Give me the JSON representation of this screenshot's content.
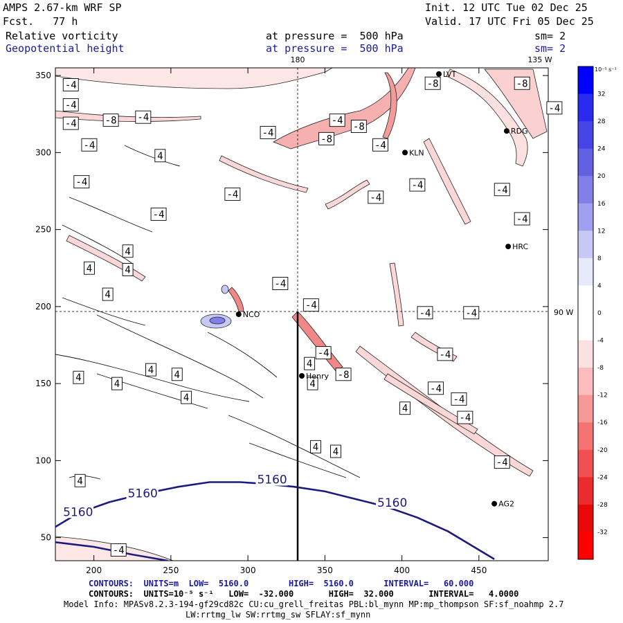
{
  "header": {
    "model": "AMPS 2.67-km WRF SP",
    "fcst": "Fcst.   77 h",
    "init": "Init. 12 UTC Tue 02 Dec 25",
    "valid": "Valid. 17 UTC Fri 05 Dec 25",
    "field1": "Relative vorticity",
    "field2": "Geopotential height",
    "press1": "at pressure =  500 hPa",
    "press2": "at pressure =  500 hPa",
    "sm1": "sm= 2",
    "sm2": "sm= 2"
  },
  "map_labels": {
    "lon_180": "180",
    "lon_135w": "135 W",
    "lat_90w": "90 W"
  },
  "stations": [
    {
      "name": "LVT",
      "x": 424,
      "y": 351
    },
    {
      "name": "RDG",
      "x": 468,
      "y": 314
    },
    {
      "name": "KLN",
      "x": 402,
      "y": 300
    },
    {
      "name": "HRC",
      "x": 469,
      "y": 239
    },
    {
      "name": "NCO",
      "x": 294,
      "y": 195
    },
    {
      "name": "Henry",
      "x": 335,
      "y": 155
    },
    {
      "name": "AG2",
      "x": 460,
      "y": 72
    }
  ],
  "colorbar": {
    "unit_label": "10⁻⁵ s⁻¹",
    "ticks": [
      "32",
      "28",
      "24",
      "20",
      "16",
      "12",
      "8",
      "4",
      "0",
      "-4",
      "-8",
      "-12",
      "-16",
      "-20",
      "-24",
      "-28",
      "-32"
    ],
    "colors": [
      "#0000ff",
      "#2a2af0",
      "#4545e6",
      "#6060e0",
      "#8080e8",
      "#a0a0f0",
      "#c8c8f6",
      "#e8e8fb",
      "#ffffff",
      "#ffffff",
      "#fde0e0",
      "#fbbcbc",
      "#f79898",
      "#f47474",
      "#f05050",
      "#ec2c2c",
      "#e80808",
      "#ff0000"
    ]
  },
  "chart_data": {
    "type": "contour",
    "x_axis": {
      "range": [
        175,
        495
      ],
      "ticks": [
        200,
        250,
        300,
        350,
        400,
        450
      ]
    },
    "y_axis": {
      "range": [
        35,
        355
      ],
      "ticks": [
        50,
        100,
        150,
        200,
        250,
        300,
        350
      ]
    },
    "height_contours": [
      {
        "value": 5160,
        "label": "5160",
        "points": [
          [
            175,
            57
          ],
          [
            190,
            66
          ],
          [
            210,
            73
          ],
          [
            230,
            78
          ],
          [
            255,
            83
          ],
          [
            275,
            86
          ],
          [
            295,
            86
          ],
          [
            310,
            85
          ],
          [
            330,
            83
          ],
          [
            350,
            80
          ],
          [
            370,
            75
          ],
          [
            390,
            70
          ],
          [
            410,
            63
          ],
          [
            430,
            54
          ],
          [
            445,
            45
          ],
          [
            460,
            36
          ]
        ]
      },
      {
        "value": 5160,
        "label": "",
        "points": [
          [
            175,
            47
          ],
          [
            200,
            44
          ],
          [
            225,
            39
          ],
          [
            248,
            35
          ]
        ]
      }
    ],
    "height_labels": [
      {
        "text": "5160",
        "x": 180,
        "y": 65
      },
      {
        "text": "5160",
        "x": 222,
        "y": 77
      },
      {
        "text": "5160",
        "x": 306,
        "y": 86
      },
      {
        "text": "5160",
        "x": 384,
        "y": 71
      }
    ],
    "vorticity_labels": [
      {
        "text": "-4",
        "x": 185,
        "y": 344
      },
      {
        "text": "-4",
        "x": 185,
        "y": 331
      },
      {
        "text": "-4",
        "x": 185,
        "y": 319
      },
      {
        "text": "-8",
        "x": 211,
        "y": 321
      },
      {
        "text": "-4",
        "x": 232,
        "y": 323
      },
      {
        "text": "-4",
        "x": 197,
        "y": 305
      },
      {
        "text": "4",
        "x": 243,
        "y": 298
      },
      {
        "text": "-4",
        "x": 290,
        "y": 273
      },
      {
        "text": "-4",
        "x": 192,
        "y": 281
      },
      {
        "text": "-4",
        "x": 242,
        "y": 260
      },
      {
        "text": "4",
        "x": 222,
        "y": 236
      },
      {
        "text": "4",
        "x": 197,
        "y": 225
      },
      {
        "text": "4",
        "x": 222,
        "y": 224
      },
      {
        "text": "4",
        "x": 209,
        "y": 208
      },
      {
        "text": "-4",
        "x": 313,
        "y": 313
      },
      {
        "text": "-4",
        "x": 358,
        "y": 321
      },
      {
        "text": "-8",
        "x": 372,
        "y": 317
      },
      {
        "text": "-8",
        "x": 351,
        "y": 309
      },
      {
        "text": "-4",
        "x": 386,
        "y": 305
      },
      {
        "text": "-8",
        "x": 420,
        "y": 345
      },
      {
        "text": "-8",
        "x": 478,
        "y": 345
      },
      {
        "text": "-4",
        "x": 499,
        "y": 329
      },
      {
        "text": "-4",
        "x": 410,
        "y": 279
      },
      {
        "text": "-4",
        "x": 383,
        "y": 271
      },
      {
        "text": "-4",
        "x": 465,
        "y": 276
      },
      {
        "text": "-4",
        "x": 478,
        "y": 257
      },
      {
        "text": "-4",
        "x": 321,
        "y": 215
      },
      {
        "text": "-4",
        "x": 341,
        "y": 201
      },
      {
        "text": "-4",
        "x": 415,
        "y": 196
      },
      {
        "text": "-4",
        "x": 445,
        "y": 196
      },
      {
        "text": "-4",
        "x": 349,
        "y": 170
      },
      {
        "text": "4",
        "x": 340,
        "y": 163
      },
      {
        "text": "-8",
        "x": 362,
        "y": 156
      },
      {
        "text": "4",
        "x": 342,
        "y": 150
      },
      {
        "text": "4",
        "x": 237,
        "y": 159
      },
      {
        "text": "4",
        "x": 254,
        "y": 156
      },
      {
        "text": "4",
        "x": 190,
        "y": 154
      },
      {
        "text": "4",
        "x": 215,
        "y": 150
      },
      {
        "text": "4",
        "x": 260,
        "y": 141
      },
      {
        "text": "-4",
        "x": 428,
        "y": 169
      },
      {
        "text": "-4",
        "x": 422,
        "y": 147
      },
      {
        "text": "-4",
        "x": 437,
        "y": 140
      },
      {
        "text": "4",
        "x": 402,
        "y": 134
      },
      {
        "text": "-4",
        "x": 441,
        "y": 128
      },
      {
        "text": "4",
        "x": 344,
        "y": 109
      },
      {
        "text": "4",
        "x": 357,
        "y": 106
      },
      {
        "text": "-4",
        "x": 465,
        "y": 99
      },
      {
        "text": "4",
        "x": 191,
        "y": 87
      },
      {
        "text": "-4",
        "x": 216,
        "y": 42
      }
    ]
  },
  "footer": {
    "contours1": "CONTOURS:  UNITS=m  LOW=  5160.0        HIGH=  5160.0      INTERVAL=   60.000",
    "contours2": "CONTOURS:  UNITS=10⁻⁵ s⁻¹   LOW=  -32.000       HIGH=  32.000       INTERVAL=   4.0000",
    "model_info": "Model Info: MPASv8.2.3-194-gf29cd82c CU:cu_grell_freitas PBL:bl_mynn MP:mp_thompson SF:sf_noahmp 2.7",
    "model_info2": "LW:rrtmg_lw SW:rrtmg_sw SFLAY:sf_mynn"
  }
}
